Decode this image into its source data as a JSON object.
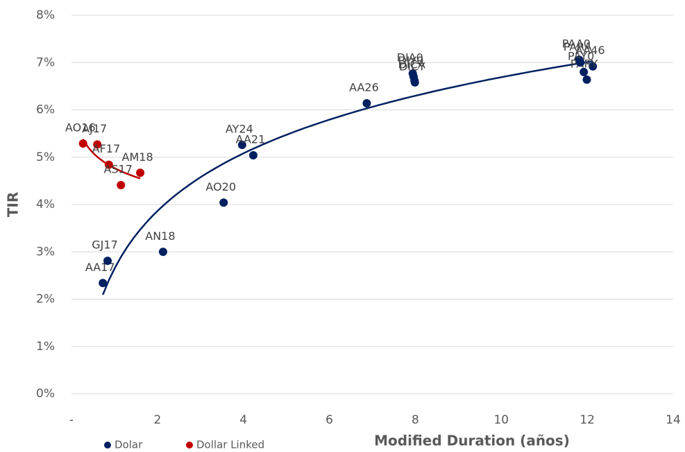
{
  "chart_data": {
    "type": "scatter",
    "x_label": "Modified Duration (años)",
    "y_label": "TIR",
    "xlim": [
      0,
      14
    ],
    "xticks": [
      {
        "value": 0,
        "label": "-"
      },
      2,
      4,
      6,
      8,
      10,
      12,
      14
    ],
    "ylim": [
      0,
      8
    ],
    "yticks": [
      {
        "value": 0,
        "label": "0%"
      },
      {
        "value": 1,
        "label": "1%"
      },
      {
        "value": 2,
        "label": "2%"
      },
      {
        "value": 3,
        "label": "3%"
      },
      {
        "value": 4,
        "label": "4%"
      },
      {
        "value": 5,
        "label": "5%"
      },
      {
        "value": 6,
        "label": "6%"
      },
      {
        "value": 7,
        "label": "7%"
      },
      {
        "value": 8,
        "label": "8%"
      }
    ],
    "grid": true,
    "trendline": "logarithmic",
    "legend": "bottom-left",
    "series": [
      {
        "name": "Dolar",
        "color": "#002060",
        "labels": [
          "AA17",
          "GJ17",
          "AN18",
          "AO20",
          "AY24",
          "AA21",
          "AA26",
          "DIA0",
          "DIY0",
          "DICA",
          "DICY",
          "PAA0",
          "AA46",
          "PAY0",
          "PARY",
          "PARA"
        ],
        "x": [
          0.73,
          0.84,
          2.13,
          3.54,
          3.97,
          4.23,
          6.87,
          7.94,
          7.96,
          7.98,
          7.99,
          11.81,
          12.13,
          11.92,
          11.99,
          11.84
        ],
        "values": [
          2.34,
          2.81,
          3.0,
          4.04,
          5.26,
          5.04,
          6.14,
          6.77,
          6.7,
          6.62,
          6.58,
          7.06,
          6.92,
          6.8,
          6.64,
          7.0
        ]
      },
      {
        "name": "Dollar Linked",
        "color": "#c00000",
        "labels": [
          "AO16",
          "AJ17",
          "AF17",
          "AS17",
          "AM18"
        ],
        "x": [
          0.27,
          0.6,
          0.87,
          1.15,
          1.6
        ],
        "values": [
          5.29,
          5.27,
          4.84,
          4.41,
          4.67
        ]
      }
    ]
  }
}
